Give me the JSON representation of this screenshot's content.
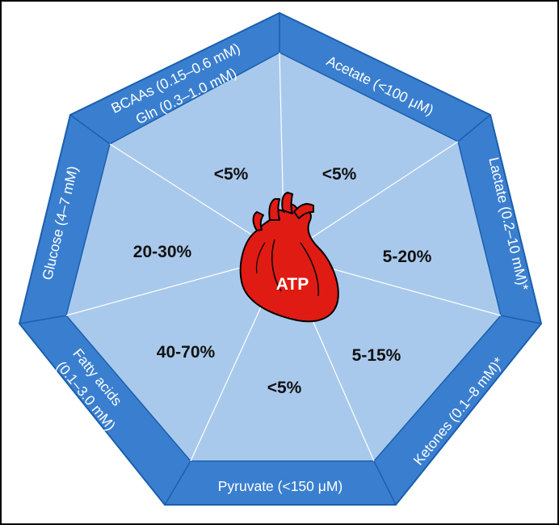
{
  "center_label": "ATP",
  "colors": {
    "frame": "#3a7fcf",
    "frame_edge": "#1b5fae",
    "segment_fill": "#a9c9ec",
    "divider": "#ffffff",
    "heart": "#e01b14",
    "heart_outline": "#000000",
    "border": "#000000"
  },
  "icons": [
    "heart-icon"
  ],
  "substrates": [
    {
      "id": "acetate",
      "name": "Acetate (<100 μM)",
      "share": "<5%"
    },
    {
      "id": "lactate",
      "name": "Lactate (0.2–10 mM)*",
      "share": "5-20%"
    },
    {
      "id": "ketones",
      "name": "Ketones (0.1–8 mM)*",
      "share": "5-15%"
    },
    {
      "id": "pyruvate",
      "name": "Pyruvate (<150 μM)",
      "share": "<5%"
    },
    {
      "id": "fatty-acids",
      "name_line1": "Fatty acids",
      "name_line2": "(0.1–3.0 mM)",
      "share": "40-70%"
    },
    {
      "id": "glucose",
      "name": "Glucose (4–7 mM)",
      "share": "20-30%"
    },
    {
      "id": "bcaas",
      "name_line1": "BCAAs (0.15–0.6 mM)",
      "name_line2": "Gln (0.3–1.0 mM)",
      "share": "<5%"
    }
  ]
}
